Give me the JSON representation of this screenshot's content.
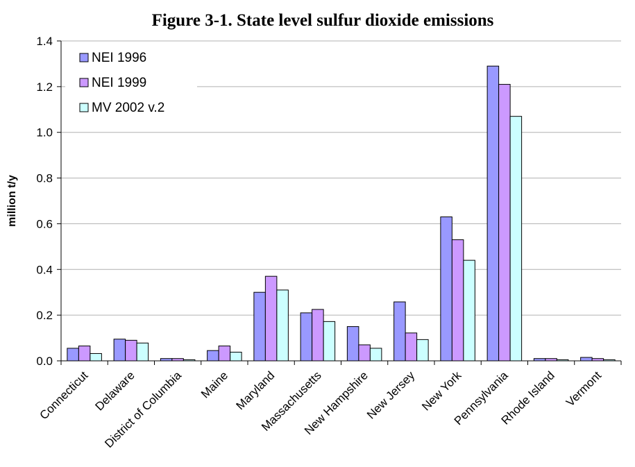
{
  "chart_data": {
    "type": "bar",
    "title": "Figure 3-1. State level sulfur dioxide emissions",
    "ylabel": "million t/y",
    "xlabel": "",
    "ylim": [
      0,
      1.4
    ],
    "yticks": [
      "0.0",
      "0.2",
      "0.4",
      "0.6",
      "0.8",
      "1.0",
      "1.2",
      "1.4"
    ],
    "grid": true,
    "legend_position": "top-left",
    "categories": [
      "Connecticut",
      "Delaware",
      "District of Columbia",
      "Maine",
      "Maryland",
      "Massachusetts",
      "New Hampshire",
      "New Jersey",
      "New York",
      "Pennsylvania",
      "Rhode Island",
      "Vermont"
    ],
    "series": [
      {
        "name": "NEI 1996",
        "color": "#9999FF",
        "values": [
          0.055,
          0.095,
          0.01,
          0.045,
          0.3,
          0.21,
          0.15,
          0.258,
          0.63,
          1.29,
          0.01,
          0.015
        ]
      },
      {
        "name": "NEI 1999",
        "color": "#CC99FF",
        "values": [
          0.065,
          0.09,
          0.01,
          0.065,
          0.37,
          0.225,
          0.07,
          0.122,
          0.53,
          1.21,
          0.01,
          0.01
        ]
      },
      {
        "name": "MV 2002 v.2",
        "color": "#CCFFFF",
        "values": [
          0.032,
          0.078,
          0.005,
          0.038,
          0.31,
          0.172,
          0.055,
          0.093,
          0.44,
          1.07,
          0.005,
          0.005
        ]
      }
    ]
  }
}
